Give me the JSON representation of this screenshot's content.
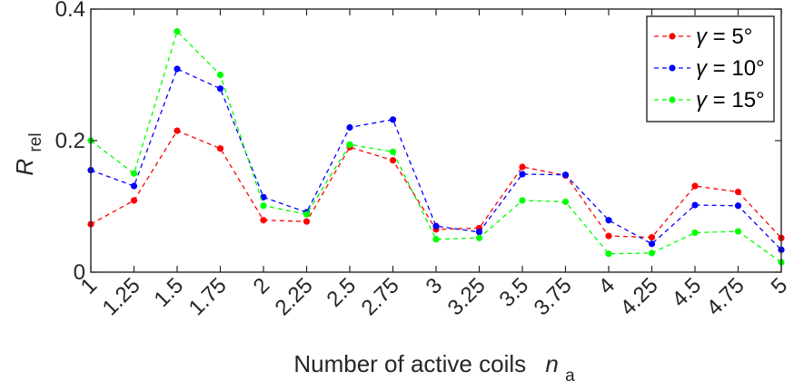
{
  "chart_data": {
    "type": "line",
    "xlabel": "Number of active coils",
    "xlabel_symbol": "n",
    "xlabel_subscript": "a",
    "ylabel_symbol": "R",
    "ylabel_subscript": "rel",
    "categories": [
      "1",
      "1.25",
      "1.5",
      "1.75",
      "2",
      "2.25",
      "2.5",
      "2.75",
      "3",
      "3.25",
      "3.5",
      "3.75",
      "4",
      "4.25",
      "4.5",
      "4.75",
      "5"
    ],
    "x": [
      1,
      1.25,
      1.5,
      1.75,
      2,
      2.25,
      2.5,
      2.75,
      3,
      3.25,
      3.5,
      3.75,
      4,
      4.25,
      4.5,
      4.75,
      5
    ],
    "xlim": [
      1,
      5
    ],
    "ylim": [
      0,
      0.4
    ],
    "yticks": [
      0,
      0.2,
      0.4
    ],
    "ytick_labels": [
      "0",
      "0.2",
      "0.4"
    ],
    "grid": false,
    "legend_position": "top-right",
    "series": [
      {
        "name": "γ = 5°",
        "symbol": "γ",
        "label_rest": " = 5°",
        "color": "#ff0000",
        "values": [
          0.073,
          0.109,
          0.215,
          0.188,
          0.079,
          0.077,
          0.19,
          0.17,
          0.065,
          0.067,
          0.16,
          0.147,
          0.055,
          0.053,
          0.131,
          0.122,
          0.052
        ]
      },
      {
        "name": "γ = 10°",
        "symbol": "γ",
        "label_rest": " = 10°",
        "color": "#0000ff",
        "values": [
          0.155,
          0.131,
          0.309,
          0.279,
          0.114,
          0.091,
          0.22,
          0.232,
          0.07,
          0.061,
          0.149,
          0.148,
          0.079,
          0.043,
          0.102,
          0.101,
          0.034
        ]
      },
      {
        "name": "γ = 15°",
        "symbol": "γ",
        "label_rest": " = 15°",
        "color": "#00ff00",
        "values": [
          0.2,
          0.15,
          0.366,
          0.3,
          0.101,
          0.088,
          0.194,
          0.183,
          0.05,
          0.052,
          0.109,
          0.107,
          0.028,
          0.029,
          0.06,
          0.062,
          0.015
        ]
      }
    ]
  }
}
